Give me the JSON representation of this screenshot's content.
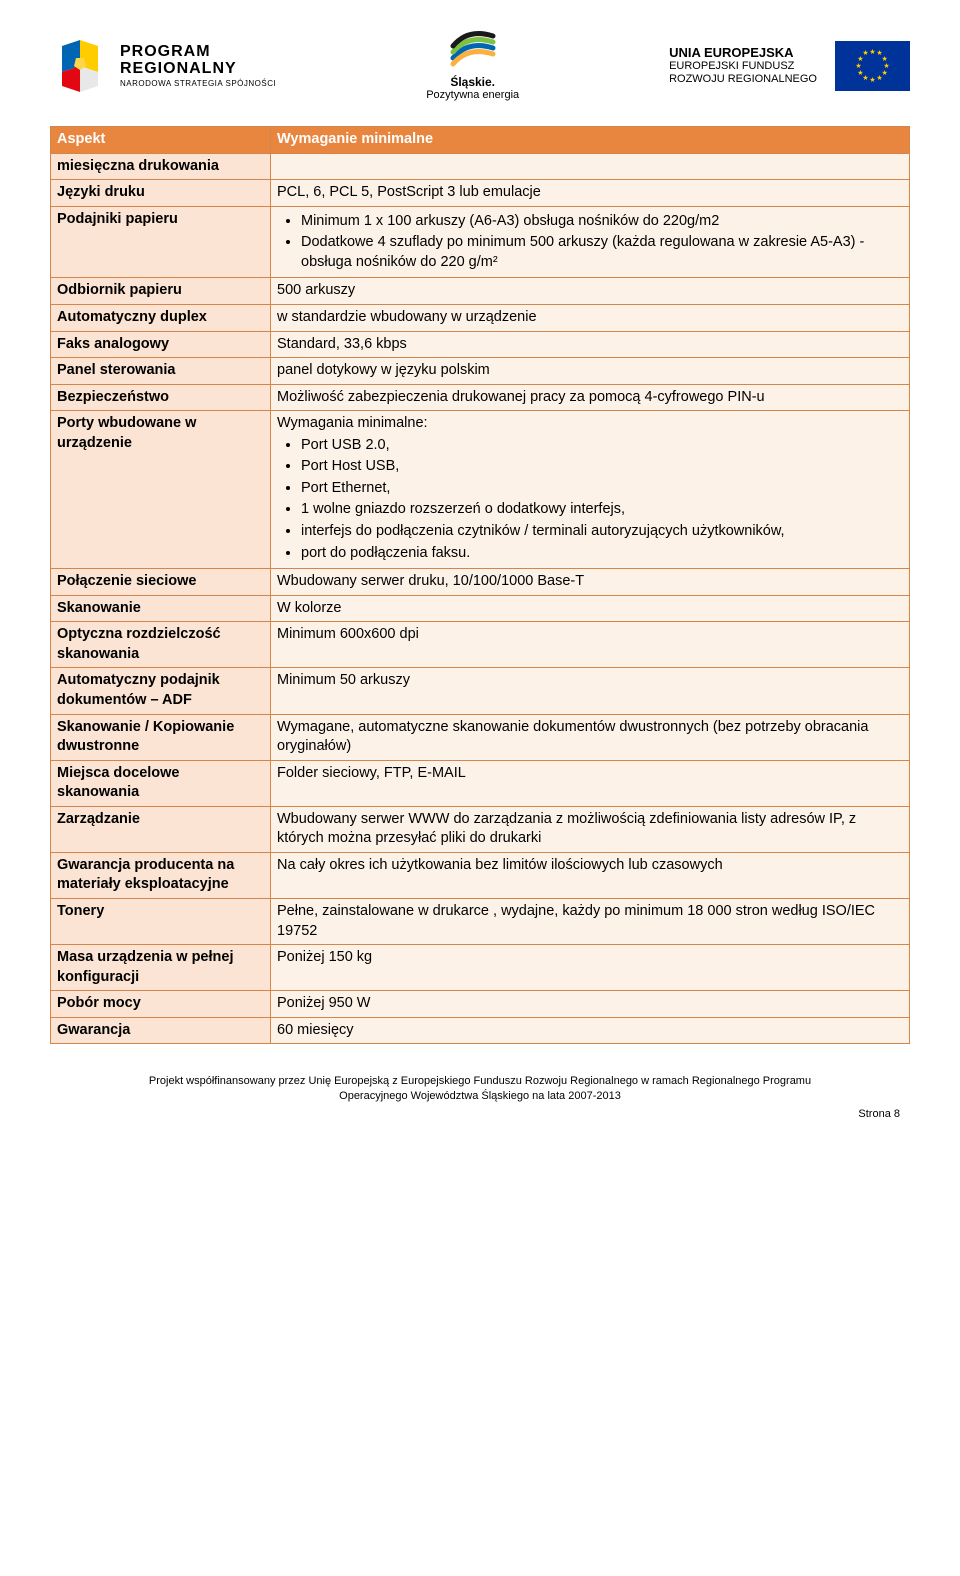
{
  "header": {
    "program": {
      "line1": "PROGRAM",
      "line2": "REGIONALNY",
      "line3": "NARODOWA STRATEGIA SPÓJNOŚCI"
    },
    "slaskie": {
      "line1": "Śląskie.",
      "line2": "Pozytywna energia"
    },
    "eu": {
      "line1": "UNIA EUROPEJSKA",
      "line2": "EUROPEJSKI FUNDUSZ",
      "line3": "ROZWOJU REGIONALNEGO"
    }
  },
  "tableHeader": {
    "col1": "Aspekt",
    "col2": "Wymaganie minimalne"
  },
  "rows": {
    "miesieczna": {
      "label": "miesięczna drukowania",
      "value": ""
    },
    "jezyki": {
      "label": "Języki druku",
      "value": "PCL, 6, PCL 5, PostScript 3 lub emulacje"
    },
    "podajniki": {
      "label": "Podajniki papieru",
      "b1": "Minimum 1 x 100 arkuszy (A6-A3) obsługa nośników do 220g/m2",
      "b2": "Dodatkowe 4 szuflady po minimum 500 arkuszy (każda regulowana w zakresie A5-A3) - obsługa nośników do 220 g/m²"
    },
    "odbiornik": {
      "label": "Odbiornik papieru",
      "value": "500 arkuszy"
    },
    "duplex": {
      "label": "Automatyczny duplex",
      "value": "w standardzie wbudowany w urządzenie"
    },
    "faks": {
      "label": "Faks analogowy",
      "value": "Standard, 33,6 kbps"
    },
    "panel": {
      "label": "Panel sterowania",
      "value": "panel dotykowy w języku polskim"
    },
    "bezp": {
      "label": "Bezpieczeństwo",
      "value": "Możliwość zabezpieczenia drukowanej pracy za pomocą 4-cyfrowego PIN-u"
    },
    "porty": {
      "label": "Porty wbudowane w urządzenie",
      "intro": "Wymagania minimalne:",
      "b1": "Port USB 2.0,",
      "b2": "Port Host USB,",
      "b3": "Port Ethernet,",
      "b4": "1 wolne gniazdo rozszerzeń o dodatkowy interfejs,",
      "b5": "interfejs do podłączenia czytników / terminali autoryzujących użytkowników,",
      "b6": "port do podłączenia faksu."
    },
    "polaczenie": {
      "label": "Połączenie sieciowe",
      "value": "Wbudowany serwer druku, 10/100/1000 Base-T"
    },
    "skanowanie": {
      "label": "Skanowanie",
      "value": "W kolorze"
    },
    "optyczna": {
      "label": "Optyczna rozdzielczość skanowania",
      "value": "Minimum 600x600 dpi"
    },
    "adf": {
      "label": "Automatyczny podajnik dokumentów – ADF",
      "value": "Minimum 50 arkuszy"
    },
    "skankop": {
      "label": "Skanowanie / Kopiowanie dwustronne",
      "value": "Wymagane, automatyczne skanowanie dokumentów dwustronnych (bez potrzeby obracania oryginałów)"
    },
    "miejsca": {
      "label": "Miejsca docelowe skanowania",
      "value": "Folder sieciowy, FTP, E-MAIL"
    },
    "zarzadzanie": {
      "label": "Zarządzanie",
      "value": "Wbudowany serwer WWW do zarządzania z możliwością zdefiniowania listy adresów IP, z których można przesyłać pliki do drukarki"
    },
    "gwarancja_mat": {
      "label": "Gwarancja producenta na materiały eksploatacyjne",
      "value": "Na cały okres ich użytkowania bez limitów ilościowych lub czasowych"
    },
    "tonery": {
      "label": "Tonery",
      "value": "Pełne, zainstalowane w drukarce , wydajne, każdy po minimum 18 000 stron według ISO/IEC 19752"
    },
    "masa": {
      "label": "Masa urządzenia w pełnej konfiguracji",
      "value": "Poniżej 150 kg"
    },
    "pobor": {
      "label": "Pobór mocy",
      "value": "Poniżej 950 W"
    },
    "gwarancja": {
      "label": "Gwarancja",
      "value": "60 miesięcy"
    }
  },
  "footer": {
    "line1": "Projekt współfinansowany przez Unię Europejską z Europejskiego Funduszu Rozwoju Regionalnego w ramach Regionalnego Programu",
    "line2": "Operacyjnego Województwa Śląskiego na lata 2007-2013",
    "page": "Strona 8"
  },
  "colors": {
    "header_bg": "#e8863f",
    "header_text": "#ffffff",
    "label_bg": "#fbe4d3",
    "value_bg": "#fdf2e8",
    "border": "#d4864a",
    "eu_flag": "#003399",
    "eu_star": "#ffcc00"
  },
  "logo_program_colors": {
    "top_left": "#0066b3",
    "top_right": "#ffcc00",
    "bottom_left": "#e30613",
    "bottom_right": "#ffffff",
    "center": "#ffcc00"
  },
  "logo_slaskie_colors": {
    "c1": "#0066b3",
    "c2": "#7cc242",
    "c3": "#fbb040",
    "c4": "#1a1a1a"
  }
}
